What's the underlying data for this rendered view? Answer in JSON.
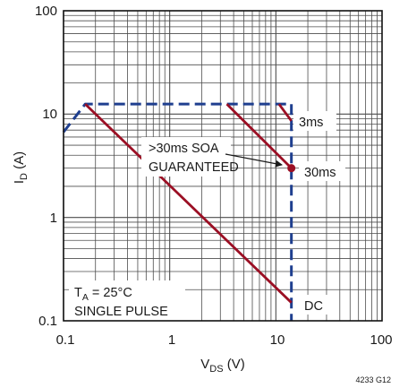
{
  "chart_data": {
    "type": "line",
    "scale": {
      "x": "log",
      "y": "log"
    },
    "xlim": [
      0.1,
      100
    ],
    "ylim": [
      0.1,
      100
    ],
    "grid": true,
    "x_ticks": [
      "0.1",
      "1",
      "10",
      "100"
    ],
    "y_ticks": [
      "100",
      "10",
      "1",
      "0.1"
    ],
    "xlabel": {
      "main": "V",
      "sub": "DS",
      "tail": " (V)"
    },
    "ylabel": {
      "main": "I",
      "sub": "D",
      "tail": " (A)"
    },
    "figure_id": "4233 G12",
    "colors": {
      "limit": "#1f3f8f",
      "curve": "#9b0f24",
      "grid": "#4d4d4d",
      "frame": "#111111"
    },
    "series": [
      {
        "kind": "boundary",
        "style": "dashed",
        "points": [
          [
            0.1,
            6.7
          ],
          [
            0.16,
            12.5
          ],
          [
            14,
            12.5
          ],
          [
            14,
            0.1
          ]
        ]
      },
      {
        "name": "3ms",
        "style": "solid",
        "points": [
          [
            10.7,
            12.5
          ],
          [
            14,
            8.6
          ]
        ]
      },
      {
        "name": "30ms",
        "style": "solid",
        "points": [
          [
            3.45,
            12.5
          ],
          [
            14,
            3
          ]
        ]
      },
      {
        "name": "DC",
        "style": "solid",
        "points": [
          [
            0.16,
            12.5
          ],
          [
            14,
            0.15
          ]
        ]
      }
    ],
    "marker": {
      "x": 14,
      "y": 3,
      "color": "#9b0f24"
    },
    "annotations": {
      "soa_line1": ">30ms SOA",
      "soa_line2": "GUARANTEED",
      "label_3ms": "3ms",
      "label_30ms": "30ms",
      "label_dc": "DC",
      "ta_main": "T",
      "ta_sub": "A",
      "ta_tail": " = 25°C",
      "pulse": "SINGLE PULSE"
    }
  }
}
